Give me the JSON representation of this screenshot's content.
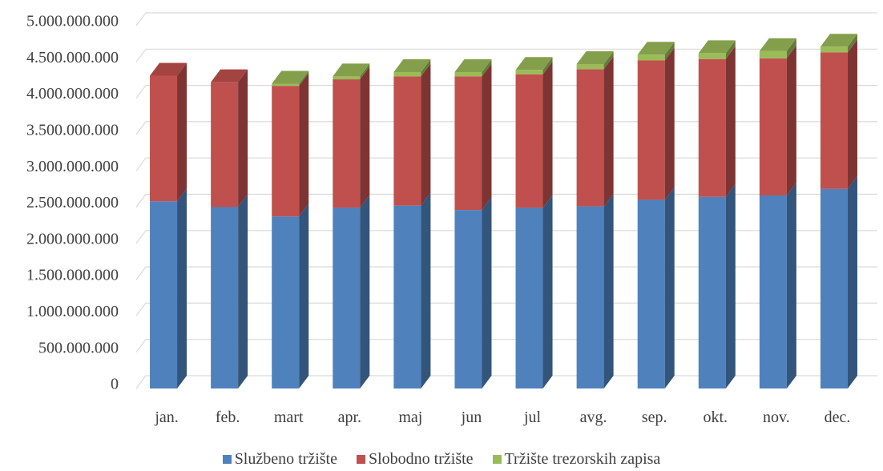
{
  "chart_data": {
    "type": "bar",
    "stacked": true,
    "three_d": true,
    "categories": [
      "jan.",
      "feb.",
      "mart",
      "apr.",
      "maj",
      "jun",
      "jul",
      "avg.",
      "sep.",
      "okt.",
      "nov.",
      "dec."
    ],
    "series": [
      {
        "name": "Službeno tržište",
        "color": "#4F81BD",
        "values": [
          2580000000,
          2500000000,
          2370000000,
          2490000000,
          2520000000,
          2460000000,
          2490000000,
          2510000000,
          2600000000,
          2640000000,
          2660000000,
          2750000000
        ]
      },
      {
        "name": "Slobodno tržište",
        "color": "#C0504D",
        "values": [
          1730000000,
          1720000000,
          1800000000,
          1770000000,
          1780000000,
          1840000000,
          1840000000,
          1890000000,
          1920000000,
          1900000000,
          1890000000,
          1880000000
        ]
      },
      {
        "name": "Tržište trezorskih zapisa",
        "color": "#9BBB59",
        "values": [
          0,
          0,
          30000000,
          40000000,
          60000000,
          60000000,
          60000000,
          70000000,
          80000000,
          80000000,
          100000000,
          80000000
        ]
      }
    ],
    "ylim": [
      0,
      5000000000
    ],
    "yticks": [
      0,
      500000000,
      1000000000,
      1500000000,
      2000000000,
      2500000000,
      3000000000,
      3500000000,
      4000000000,
      4500000000,
      5000000000
    ],
    "ytick_labels": [
      "0",
      "500.000.000",
      "1.000.000.000",
      "1.500.000.000",
      "2.000.000.000",
      "2.500.000.000",
      "3.000.000.000",
      "3.500.000.000",
      "4.000.000.000",
      "4.500.000.000",
      "5.000.000.000"
    ],
    "grid": true,
    "legend_position": "bottom",
    "title": "",
    "xlabel": "",
    "ylabel": ""
  }
}
